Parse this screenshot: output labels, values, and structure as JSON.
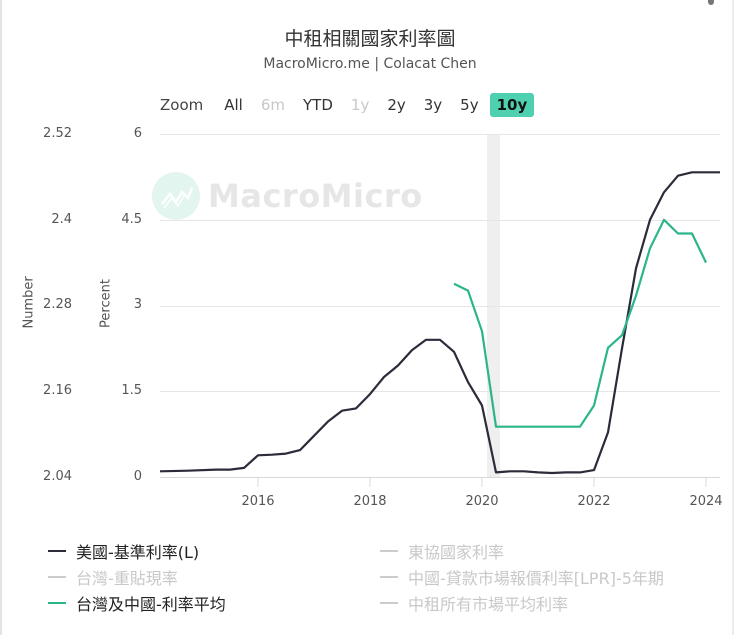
{
  "header": {
    "title": "中租相關國家利率圖",
    "subtitle": "MacroMicro.me | Colacat Chen"
  },
  "zoom": {
    "label": "Zoom",
    "buttons": [
      {
        "label": "All",
        "state": "normal"
      },
      {
        "label": "6m",
        "state": "disabled"
      },
      {
        "label": "YTD",
        "state": "normal"
      },
      {
        "label": "1y",
        "state": "disabled"
      },
      {
        "label": "2y",
        "state": "normal"
      },
      {
        "label": "3y",
        "state": "normal"
      },
      {
        "label": "5y",
        "state": "normal"
      },
      {
        "label": "10y",
        "state": "active"
      }
    ]
  },
  "watermark": {
    "text": "MacroMicro"
  },
  "axes": {
    "left_title": "Number",
    "left_ticks": [
      "2.52",
      "2.4",
      "2.28",
      "2.16",
      "2.04"
    ],
    "right_title": "Percent",
    "right_ticks": [
      "6",
      "4.5",
      "3",
      "1.5",
      "0"
    ],
    "x_ticks": [
      "2016",
      "2018",
      "2020",
      "2022",
      "2024"
    ]
  },
  "legend": {
    "items": [
      {
        "label": "美國-基準利率(L)",
        "color": "#2b2b3a",
        "visible": true
      },
      {
        "label": "東協國家利率",
        "color": "#cccccc",
        "visible": false
      },
      {
        "label": "台灣-重貼現率",
        "color": "#cccccc",
        "visible": false
      },
      {
        "label": "中國-貸款市場報價利率[LPR]-5年期",
        "color": "#cccccc",
        "visible": false
      },
      {
        "label": "台灣及中國-利率平均",
        "color": "#2bb58a",
        "visible": true
      },
      {
        "label": "中租所有市場平均利率",
        "color": "#cccccc",
        "visible": false
      }
    ]
  },
  "colors": {
    "us_rate": "#2b2b3a",
    "tw_cn_avg": "#2bb58a",
    "active_zoom": "#4fd1b0",
    "gridline": "#e6e6e6",
    "recession_band": "#efefef"
  },
  "chart_data": {
    "type": "line",
    "title": "中租相關國家利率圖",
    "subtitle": "MacroMicro.me | Colacat Chen",
    "xlabel": "",
    "ylabel_left": "Number",
    "ylabel_right": "Percent",
    "ylim_right": [
      0,
      6
    ],
    "ylim_left": [
      2.04,
      2.52
    ],
    "x_ticks": [
      2016,
      2018,
      2020,
      2022,
      2024
    ],
    "grid": true,
    "legend_position": "bottom",
    "shaded_band": {
      "x_start": 2020.1,
      "x_end": 2020.35
    },
    "series": [
      {
        "name": "美國-基準利率(L)",
        "x": [
          2014.25,
          2014.75,
          2015.25,
          2015.5,
          2015.75,
          2016.0,
          2016.25,
          2016.5,
          2016.75,
          2017.0,
          2017.25,
          2017.5,
          2017.75,
          2018.0,
          2018.25,
          2018.5,
          2018.75,
          2019.0,
          2019.25,
          2019.5,
          2019.75,
          2020.0,
          2020.25,
          2020.5,
          2020.75,
          2021.0,
          2021.25,
          2021.5,
          2021.75,
          2022.0,
          2022.25,
          2022.5,
          2022.75,
          2023.0,
          2023.25,
          2023.5,
          2023.75,
          2024.0,
          2024.25
        ],
        "values": [
          0.1,
          0.11,
          0.13,
          0.13,
          0.16,
          0.38,
          0.39,
          0.41,
          0.47,
          0.72,
          0.97,
          1.16,
          1.2,
          1.45,
          1.75,
          1.95,
          2.22,
          2.4,
          2.4,
          2.19,
          1.66,
          1.25,
          0.08,
          0.1,
          0.1,
          0.08,
          0.07,
          0.08,
          0.08,
          0.12,
          0.78,
          2.25,
          3.65,
          4.5,
          4.98,
          5.27,
          5.33,
          5.33,
          5.33
        ]
      },
      {
        "name": "台灣及中國-利率平均",
        "x": [
          2019.5,
          2019.75,
          2020.0,
          2020.25,
          2020.5,
          2021.0,
          2021.5,
          2021.75,
          2022.0,
          2022.25,
          2022.5,
          2022.75,
          2023.0,
          2023.25,
          2023.5,
          2023.75,
          2024.0
        ],
        "values": [
          3.38,
          3.26,
          2.55,
          0.88,
          0.88,
          0.88,
          0.88,
          0.88,
          1.25,
          2.26,
          2.48,
          3.17,
          4.0,
          4.5,
          4.26,
          4.26,
          3.75
        ]
      }
    ]
  }
}
